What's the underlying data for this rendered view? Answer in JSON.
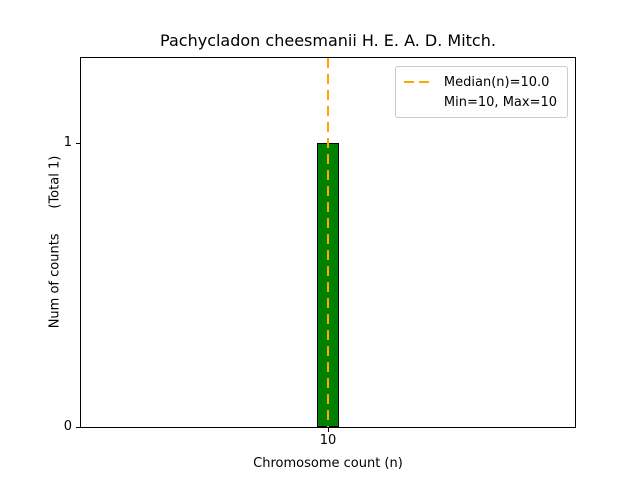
{
  "chart_data": {
    "type": "bar",
    "title": "Pachycladon cheesmanii H. E. A. D. Mitch.",
    "xlabel": "Chromosome count (n)",
    "ylabel": "Num of counts      (Total 1)",
    "categories": [
      10
    ],
    "values": [
      1
    ],
    "x_ticks": [
      "10"
    ],
    "y_ticks": [
      "0",
      "1"
    ],
    "ylim": [
      0,
      1.3
    ],
    "grid": false,
    "bar_color": "#008000",
    "bar_edge_color": "#000000",
    "median_line": {
      "x": 10,
      "value": 10.0,
      "color": "#FFA500",
      "style": "dashed"
    },
    "legend": {
      "position": "upper right",
      "entries": [
        {
          "label": "Median(n)=10.0",
          "marker": "dashed-line",
          "color": "#FFA500"
        },
        {
          "label": "Min=10, Max=10",
          "marker": "none"
        }
      ]
    }
  }
}
